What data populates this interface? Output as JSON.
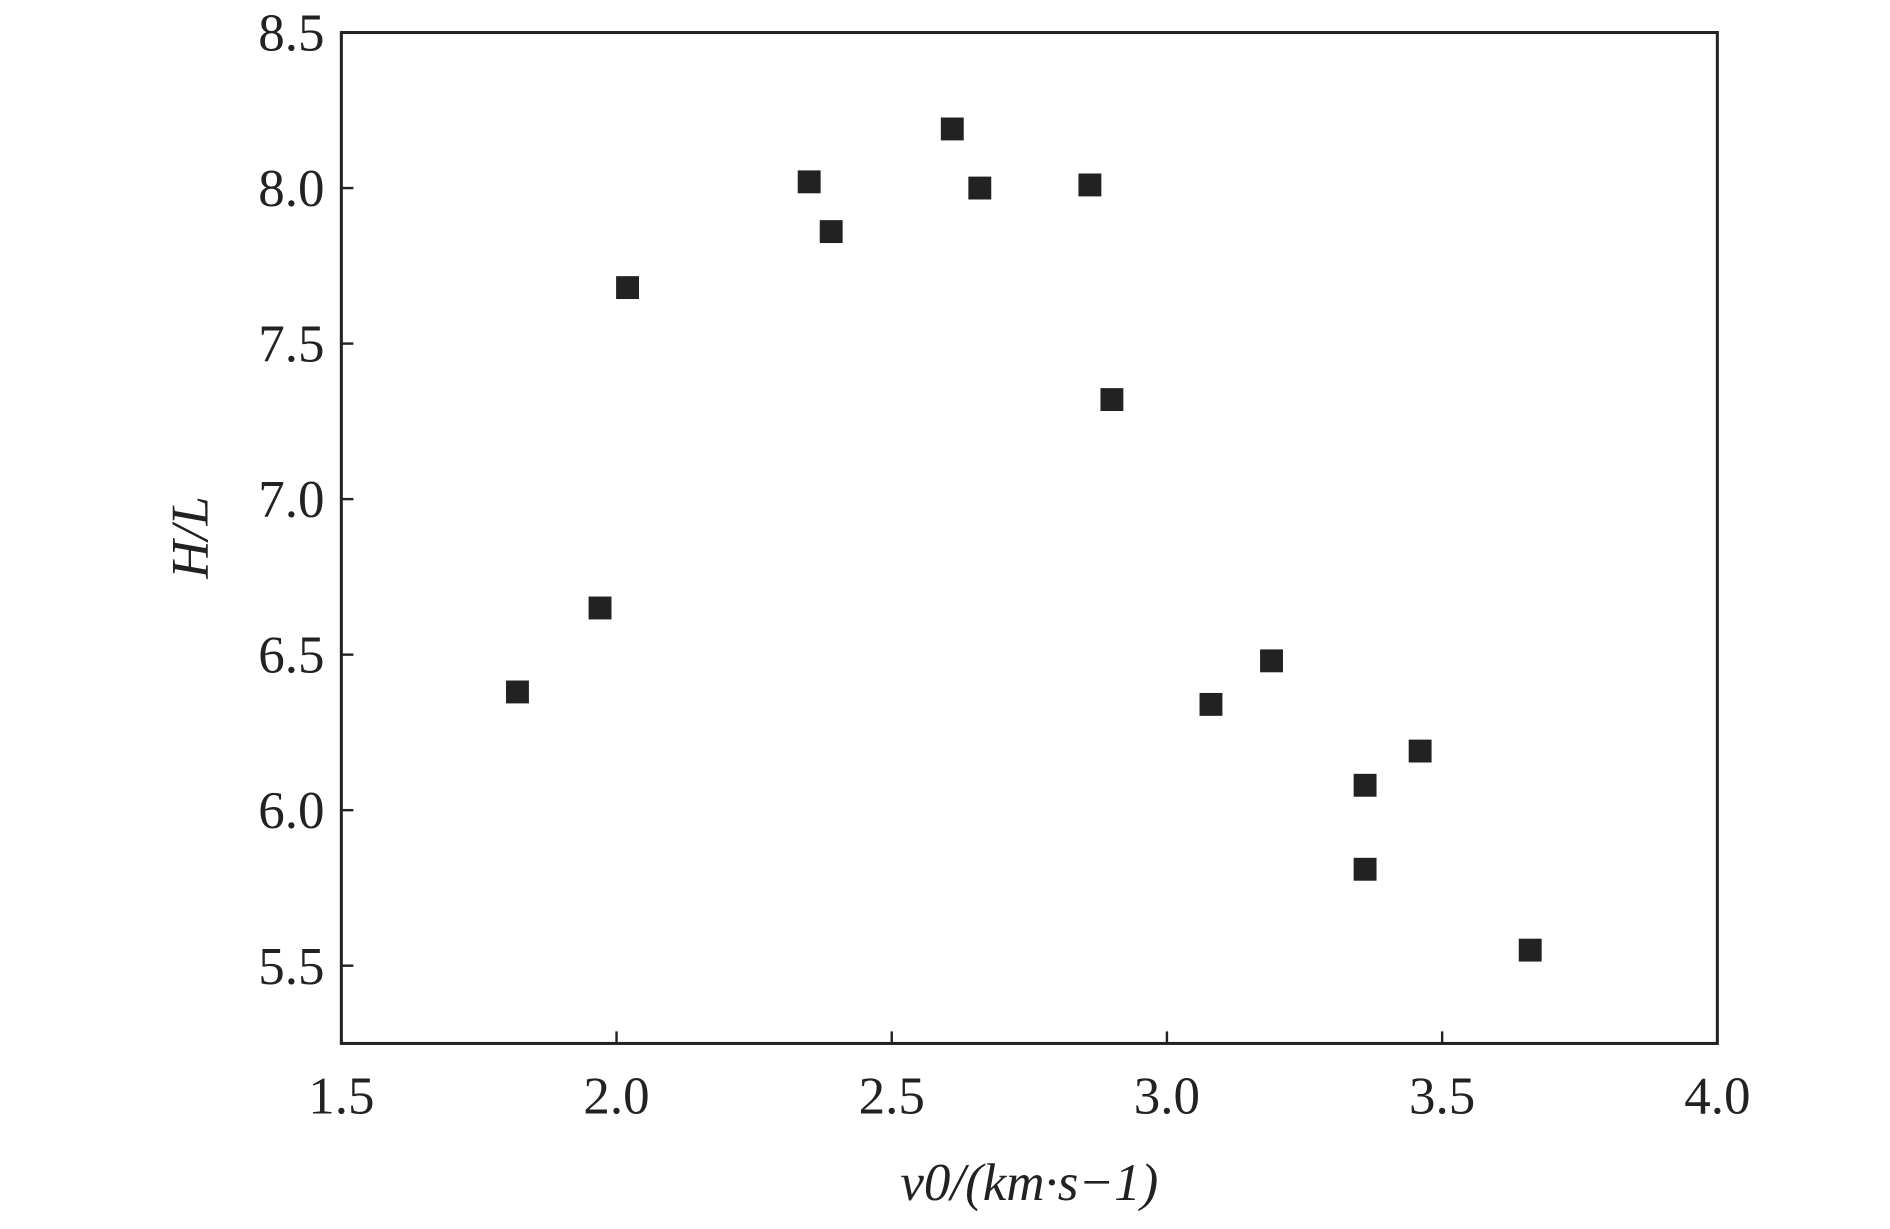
{
  "chart_data": {
    "type": "scatter",
    "xlabel": "v0/(km·s−1)",
    "ylabel": "H/L",
    "x": [
      1.82,
      1.97,
      2.02,
      2.35,
      2.39,
      2.61,
      2.66,
      2.86,
      2.9,
      3.08,
      3.19,
      3.36,
      3.36,
      3.46,
      3.66
    ],
    "values": [
      6.38,
      6.65,
      7.68,
      8.02,
      7.86,
      8.19,
      8.0,
      8.01,
      7.32,
      6.34,
      6.48,
      6.08,
      5.81,
      6.19,
      5.55
    ],
    "color": "#222222",
    "xlim": [
      1.5,
      4.0
    ],
    "xticks": [
      1.5,
      {
        "value": 2,
        "label": "2.0"
      },
      2.5,
      {
        "value": 3,
        "label": "3.0"
      },
      3.5,
      {
        "value": 4,
        "label": "4.0"
      }
    ],
    "ylim": [
      5.25,
      8.5
    ],
    "yticks": [
      5.5,
      {
        "value": 6,
        "label": "6.0"
      },
      6.5,
      {
        "value": 7,
        "label": "7.0"
      },
      7.5,
      {
        "value": 8,
        "label": "8.0"
      },
      8.5
    ]
  }
}
